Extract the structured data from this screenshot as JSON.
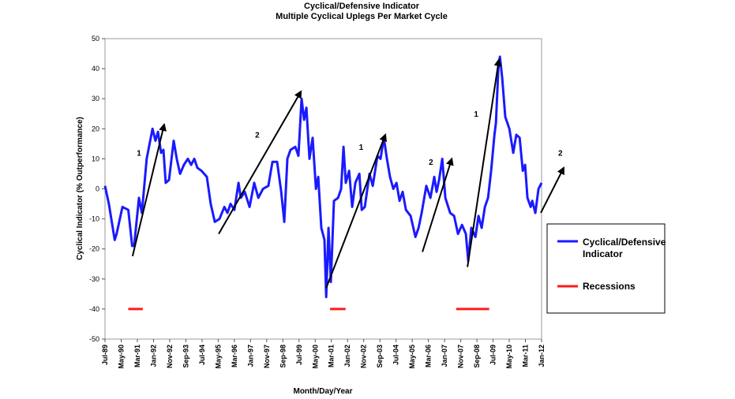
{
  "chart_data": {
    "type": "line",
    "title": "Cyclical/Defensive Indicator",
    "subtitle": "Multiple Cyclical Uplegs Per Market Cycle",
    "xlabel": "Month/Day/Year",
    "ylabel": "Cyclical Indicator (% Outperformance)",
    "ylim": [
      -50,
      50
    ],
    "yticks": [
      50,
      40,
      30,
      20,
      10,
      0,
      -10,
      -20,
      -30,
      -40,
      -50
    ],
    "xlim": [
      1989.5,
      2012.0
    ],
    "xtick_labels": [
      "Jul-89",
      "May-90",
      "Mar-91",
      "Jan-92",
      "Nov-92",
      "Sep-93",
      "Jul-94",
      "May-95",
      "Mar-96",
      "Jan-97",
      "Nov-97",
      "Sep-98",
      "Jul-99",
      "May-00",
      "Mar-01",
      "Jan-02",
      "Nov-02",
      "Sep-03",
      "Jul-04",
      "May-05",
      "Mar-06",
      "Jan-07",
      "Nov-07",
      "Sep-08",
      "Jul-09",
      "May-10",
      "Mar-11",
      "Jan-12"
    ],
    "grid": false,
    "legend": {
      "placement": "right",
      "entries": [
        {
          "label": "Cyclical/Defensive Indicator",
          "color": "#1a1aff"
        },
        {
          "label": "Recessions",
          "color": "#ff1a1a"
        }
      ]
    },
    "series": [
      {
        "name": "Cyclical/Defensive Indicator",
        "x": [
          1989.5,
          1989.7,
          1990.0,
          1990.1,
          1990.4,
          1990.7,
          1990.9,
          1991.0,
          1991.25,
          1991.4,
          1991.65,
          1991.95,
          1992.1,
          1992.23,
          1992.39,
          1992.51,
          1992.63,
          1992.8,
          1993.04,
          1993.2,
          1993.37,
          1993.57,
          1993.77,
          1993.94,
          1994.1,
          1994.26,
          1994.47,
          1994.75,
          1994.95,
          1995.16,
          1995.4,
          1995.65,
          1995.81,
          1995.97,
          1996.17,
          1996.38,
          1996.5,
          1996.7,
          1996.95,
          1997.19,
          1997.4,
          1997.64,
          1997.92,
          1998.13,
          1998.37,
          1998.58,
          1998.74,
          1998.9,
          1999.06,
          1999.31,
          1999.47,
          1999.63,
          1999.76,
          1999.88,
          2000.04,
          2000.2,
          2000.37,
          2000.49,
          2000.65,
          2000.81,
          2000.9,
          2001.02,
          2001.14,
          2001.3,
          2001.51,
          2001.67,
          2001.79,
          2001.91,
          2002.08,
          2002.24,
          2002.4,
          2002.61,
          2002.73,
          2002.89,
          2003.13,
          2003.3,
          2003.54,
          2003.7,
          2003.87,
          2004.03,
          2004.19,
          2004.36,
          2004.52,
          2004.68,
          2004.84,
          2005.01,
          2005.25,
          2005.5,
          2005.66,
          2005.82,
          2006.06,
          2006.27,
          2006.47,
          2006.59,
          2006.72,
          2006.88,
          2007.04,
          2007.29,
          2007.49,
          2007.69,
          2007.9,
          2008.1,
          2008.22,
          2008.38,
          2008.59,
          2008.75,
          2008.91,
          2009.08,
          2009.24,
          2009.4,
          2009.57,
          2009.65,
          2009.77,
          2009.85,
          2009.97,
          2010.13,
          2010.34,
          2010.54,
          2010.7,
          2010.87,
          2011.03,
          2011.15,
          2011.27,
          2011.44,
          2011.52,
          2011.68,
          2011.84,
          2012.0
        ],
        "values": [
          1,
          -5,
          -17,
          -15,
          -6,
          -7,
          -19,
          -19,
          -3,
          -8,
          10,
          20,
          16,
          19,
          12,
          13,
          2,
          3,
          16,
          10,
          5,
          8,
          10,
          8,
          10,
          7,
          6,
          4,
          -5,
          -11,
          -10,
          -6,
          -8,
          -5,
          -7,
          2,
          -3,
          -1,
          -6,
          2,
          -3,
          0,
          1,
          9,
          9,
          -1,
          -11,
          10,
          13,
          14,
          11,
          30,
          23,
          27,
          10,
          17,
          0,
          4,
          -13,
          -17,
          -36,
          -13,
          -31,
          -4,
          -3,
          0,
          14,
          2,
          6,
          -6,
          2,
          5,
          -7,
          -6,
          5,
          1,
          11,
          10,
          17,
          10,
          4,
          0,
          2,
          -4,
          -1,
          -7,
          -9,
          -16,
          -13,
          -8,
          1,
          -3,
          4,
          -1,
          3,
          10,
          -3,
          -8,
          -9,
          -15,
          -12,
          -15,
          -24,
          -13,
          -16,
          -9,
          -13,
          -6,
          -3,
          6,
          18,
          22,
          40,
          44,
          37,
          24,
          20,
          12,
          18,
          17,
          6,
          8,
          -3,
          -6,
          -4,
          -8,
          0,
          2
        ],
        "color": "#1a1aff"
      }
    ],
    "recessions": [
      {
        "start": 1990.7,
        "end": 1991.45,
        "value": -40
      },
      {
        "start": 2001.1,
        "end": 2001.9,
        "value": -40
      },
      {
        "start": 2007.6,
        "end": 2009.3,
        "value": -40
      }
    ],
    "annotations": [
      {
        "label": "1",
        "from": [
          1990.92,
          -22.4
        ],
        "to": [
          1992.55,
          21.4
        ],
        "label_at": [
          1991.25,
          11
        ]
      },
      {
        "label": "2",
        "from": [
          1995.36,
          -15
        ],
        "to": [
          1999.6,
          32.4
        ],
        "label_at": [
          1997.35,
          17
        ]
      },
      {
        "label": "1",
        "from": [
          2000.9,
          -33
        ],
        "to": [
          2003.95,
          18
        ],
        "label_at": [
          2002.7,
          13
        ]
      },
      {
        "label": "2",
        "from": [
          2005.86,
          -21
        ],
        "to": [
          2007.37,
          10
        ],
        "label_at": [
          2006.3,
          8
        ]
      },
      {
        "label": "1",
        "from": [
          2008.18,
          -26
        ],
        "to": [
          2009.8,
          43
        ],
        "label_at": [
          2008.63,
          24
        ]
      },
      {
        "label": "2",
        "from": [
          2011.96,
          -8
        ],
        "to": [
          2013.14,
          7
        ],
        "label_at": [
          2012.97,
          11
        ]
      }
    ]
  }
}
